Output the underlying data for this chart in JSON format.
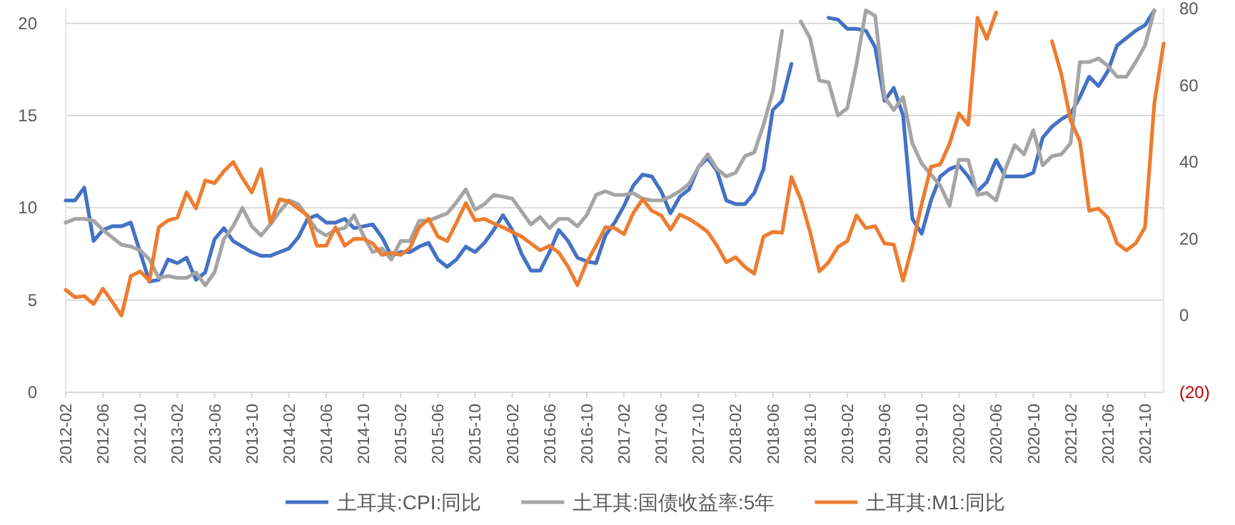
{
  "chart_data": {
    "type": "line",
    "x": [
      "2012-02",
      "2012-03",
      "2012-04",
      "2012-05",
      "2012-06",
      "2012-07",
      "2012-08",
      "2012-09",
      "2012-10",
      "2012-11",
      "2012-12",
      "2013-01",
      "2013-02",
      "2013-03",
      "2013-04",
      "2013-05",
      "2013-06",
      "2013-07",
      "2013-08",
      "2013-09",
      "2013-10",
      "2013-11",
      "2013-12",
      "2014-01",
      "2014-02",
      "2014-03",
      "2014-04",
      "2014-05",
      "2014-06",
      "2014-07",
      "2014-08",
      "2014-09",
      "2014-10",
      "2014-11",
      "2014-12",
      "2015-01",
      "2015-02",
      "2015-03",
      "2015-04",
      "2015-05",
      "2015-06",
      "2015-07",
      "2015-08",
      "2015-09",
      "2015-10",
      "2015-11",
      "2015-12",
      "2016-01",
      "2016-02",
      "2016-03",
      "2016-04",
      "2016-05",
      "2016-06",
      "2016-07",
      "2016-08",
      "2016-09",
      "2016-10",
      "2016-11",
      "2016-12",
      "2017-01",
      "2017-02",
      "2017-03",
      "2017-04",
      "2017-05",
      "2017-06",
      "2017-07",
      "2017-08",
      "2017-09",
      "2017-10",
      "2017-11",
      "2017-12",
      "2018-01",
      "2018-02",
      "2018-03",
      "2018-04",
      "2018-05",
      "2018-06",
      "2018-07",
      "2018-08",
      "2018-09",
      "2018-10",
      "2018-11",
      "2018-12",
      "2019-01",
      "2019-02",
      "2019-03",
      "2019-04",
      "2019-05",
      "2019-06",
      "2019-07",
      "2019-08",
      "2019-09",
      "2019-10",
      "2019-11",
      "2019-12",
      "2020-01",
      "2020-02",
      "2020-03",
      "2020-04",
      "2020-05",
      "2020-06",
      "2020-07",
      "2020-08",
      "2020-09",
      "2020-10",
      "2020-11",
      "2020-12",
      "2021-01",
      "2021-02",
      "2021-03",
      "2021-04",
      "2021-05",
      "2021-06",
      "2021-07",
      "2021-08",
      "2021-09",
      "2021-10",
      "2021-11",
      "2021-12"
    ],
    "series": [
      {
        "name": "土耳其:CPI:同比",
        "color": "#4472c4",
        "values": [
          10.4,
          10.4,
          11.1,
          8.2,
          8.8,
          9.0,
          9.0,
          9.2,
          7.6,
          6.0,
          6.1,
          7.2,
          7.0,
          7.3,
          6.1,
          6.5,
          8.3,
          8.9,
          8.2,
          7.9,
          7.6,
          7.4,
          7.4,
          7.6,
          7.8,
          8.4,
          9.4,
          9.6,
          9.2,
          9.2,
          9.4,
          8.9,
          9.0,
          9.1,
          8.4,
          7.4,
          7.6,
          7.6,
          7.9,
          8.1,
          7.2,
          6.8,
          7.2,
          7.9,
          7.6,
          8.1,
          8.8,
          9.6,
          8.8,
          7.5,
          6.6,
          6.6,
          7.6,
          8.8,
          8.2,
          7.3,
          7.1,
          7.0,
          8.5,
          9.2,
          10.1,
          11.2,
          11.8,
          11.7,
          10.9,
          9.7,
          10.6,
          11.0,
          12.2,
          12.7,
          12.0,
          10.4,
          10.2,
          10.2,
          10.8,
          12.1,
          15.3,
          15.8,
          17.8,
          null,
          null,
          null,
          20.3,
          20.2,
          19.7,
          19.7,
          19.6,
          18.7,
          15.8,
          16.5,
          15.0,
          9.4,
          8.6,
          10.4,
          11.7,
          12.1,
          12.3,
          11.7,
          10.9,
          11.4,
          12.6,
          11.7,
          11.7,
          11.7,
          11.9,
          13.8,
          14.4,
          14.8,
          15.1,
          16.0,
          17.1,
          16.6,
          17.4,
          18.8,
          19.2,
          19.6,
          19.9,
          20.7,
          null
        ]
      },
      {
        "name": "土耳其:国债收益率:5年",
        "color": "#a5a5a5",
        "values": [
          9.2,
          9.4,
          9.4,
          9.3,
          8.8,
          8.4,
          8.0,
          7.9,
          7.7,
          7.2,
          6.2,
          6.3,
          6.2,
          6.2,
          6.5,
          5.8,
          6.5,
          8.3,
          9.0,
          10.0,
          9.0,
          8.5,
          9.1,
          9.8,
          10.4,
          10.2,
          9.5,
          8.8,
          8.5,
          8.8,
          8.9,
          9.6,
          8.5,
          7.6,
          7.8,
          7.2,
          8.2,
          8.2,
          9.3,
          9.3,
          9.5,
          9.7,
          10.3,
          11.0,
          9.9,
          10.2,
          10.7,
          10.6,
          10.5,
          9.8,
          9.1,
          9.5,
          8.9,
          9.4,
          9.4,
          9.0,
          9.6,
          10.7,
          10.9,
          10.7,
          10.7,
          10.8,
          10.5,
          10.4,
          10.4,
          10.6,
          10.9,
          11.3,
          12.2,
          12.9,
          12.1,
          11.7,
          11.9,
          12.8,
          13.0,
          14.5,
          16.3,
          19.6,
          null,
          20.1,
          19.2,
          16.9,
          16.8,
          15.0,
          15.4,
          17.8,
          20.7,
          20.4,
          16.0,
          15.3,
          16.0,
          13.5,
          12.4,
          11.8,
          11.2,
          10.1,
          12.6,
          12.6,
          10.7,
          10.8,
          10.4,
          12.1,
          13.4,
          12.9,
          14.2,
          12.3,
          12.8,
          12.9,
          13.5,
          17.9,
          17.9,
          18.1,
          17.7,
          17.1,
          17.1,
          17.9,
          18.8,
          20.7,
          null
        ]
      },
      {
        "name": "土耳其:M1:同比",
        "color": "#ed7d31",
        "axis": "y2",
        "values": [
          6.7,
          4.8,
          5.1,
          3.0,
          7.0,
          3.6,
          0,
          10.3,
          11.5,
          9.1,
          23.0,
          24.8,
          25.5,
          32.1,
          27.9,
          35.2,
          34.5,
          37.6,
          40.0,
          35.8,
          32.1,
          38.2,
          24.2,
          30.3,
          29.7,
          27.9,
          26.1,
          18.2,
          18.2,
          23.0,
          18.2,
          20.0,
          20.0,
          18.8,
          15.8,
          16.4,
          15.8,
          17.6,
          23.0,
          25.2,
          20.6,
          19.4,
          24.2,
          29.3,
          24.8,
          25.2,
          24.0,
          23.0,
          21.8,
          20.6,
          18.8,
          17.0,
          18.2,
          16.4,
          12.7,
          7.9,
          13.9,
          18.2,
          23.0,
          22.8,
          21.2,
          26.7,
          30.3,
          27.3,
          26.1,
          22.4,
          26.3,
          25.2,
          23.6,
          21.8,
          18.2,
          13.9,
          15.2,
          12.7,
          10.9,
          20.6,
          21.8,
          21.6,
          36.1,
          30.3,
          21.8,
          11.5,
          13.9,
          17.9,
          19.4,
          26.1,
          22.8,
          23.3,
          18.8,
          18.5,
          9.1,
          18.2,
          29.1,
          38.8,
          39.4,
          44.8,
          52.7,
          49.7,
          77.6,
          72.1,
          79,
          null,
          null,
          null,
          null,
          null,
          71.5,
          63.0,
          50.9,
          45.5,
          27.3,
          27.9,
          25.5,
          18.8,
          17.0,
          18.8,
          23.0,
          55.2,
          70.9
        ]
      }
    ],
    "xlim": [
      "2012-02",
      "2021-12"
    ],
    "xticks": [
      "2012-02",
      "2012-06",
      "2012-10",
      "2013-02",
      "2013-06",
      "2013-10",
      "2014-02",
      "2014-06",
      "2014-10",
      "2015-02",
      "2015-06",
      "2015-10",
      "2016-02",
      "2016-06",
      "2016-10",
      "2017-02",
      "2017-06",
      "2017-10",
      "2018-02",
      "2018-06",
      "2018-10",
      "2019-02",
      "2019-06",
      "2019-10",
      "2020-02",
      "2020-06",
      "2020-10",
      "2021-02",
      "2021-06",
      "2021-10"
    ],
    "ylim": [
      0,
      20.8
    ],
    "yticks": [
      0,
      5,
      10,
      15,
      20
    ],
    "y2lim": [
      -20,
      80
    ],
    "y2ticks": [
      {
        "value": -20,
        "label": "(20)"
      },
      0,
      20,
      40,
      60,
      80
    ],
    "grid": "y",
    "legend": "bottom"
  }
}
